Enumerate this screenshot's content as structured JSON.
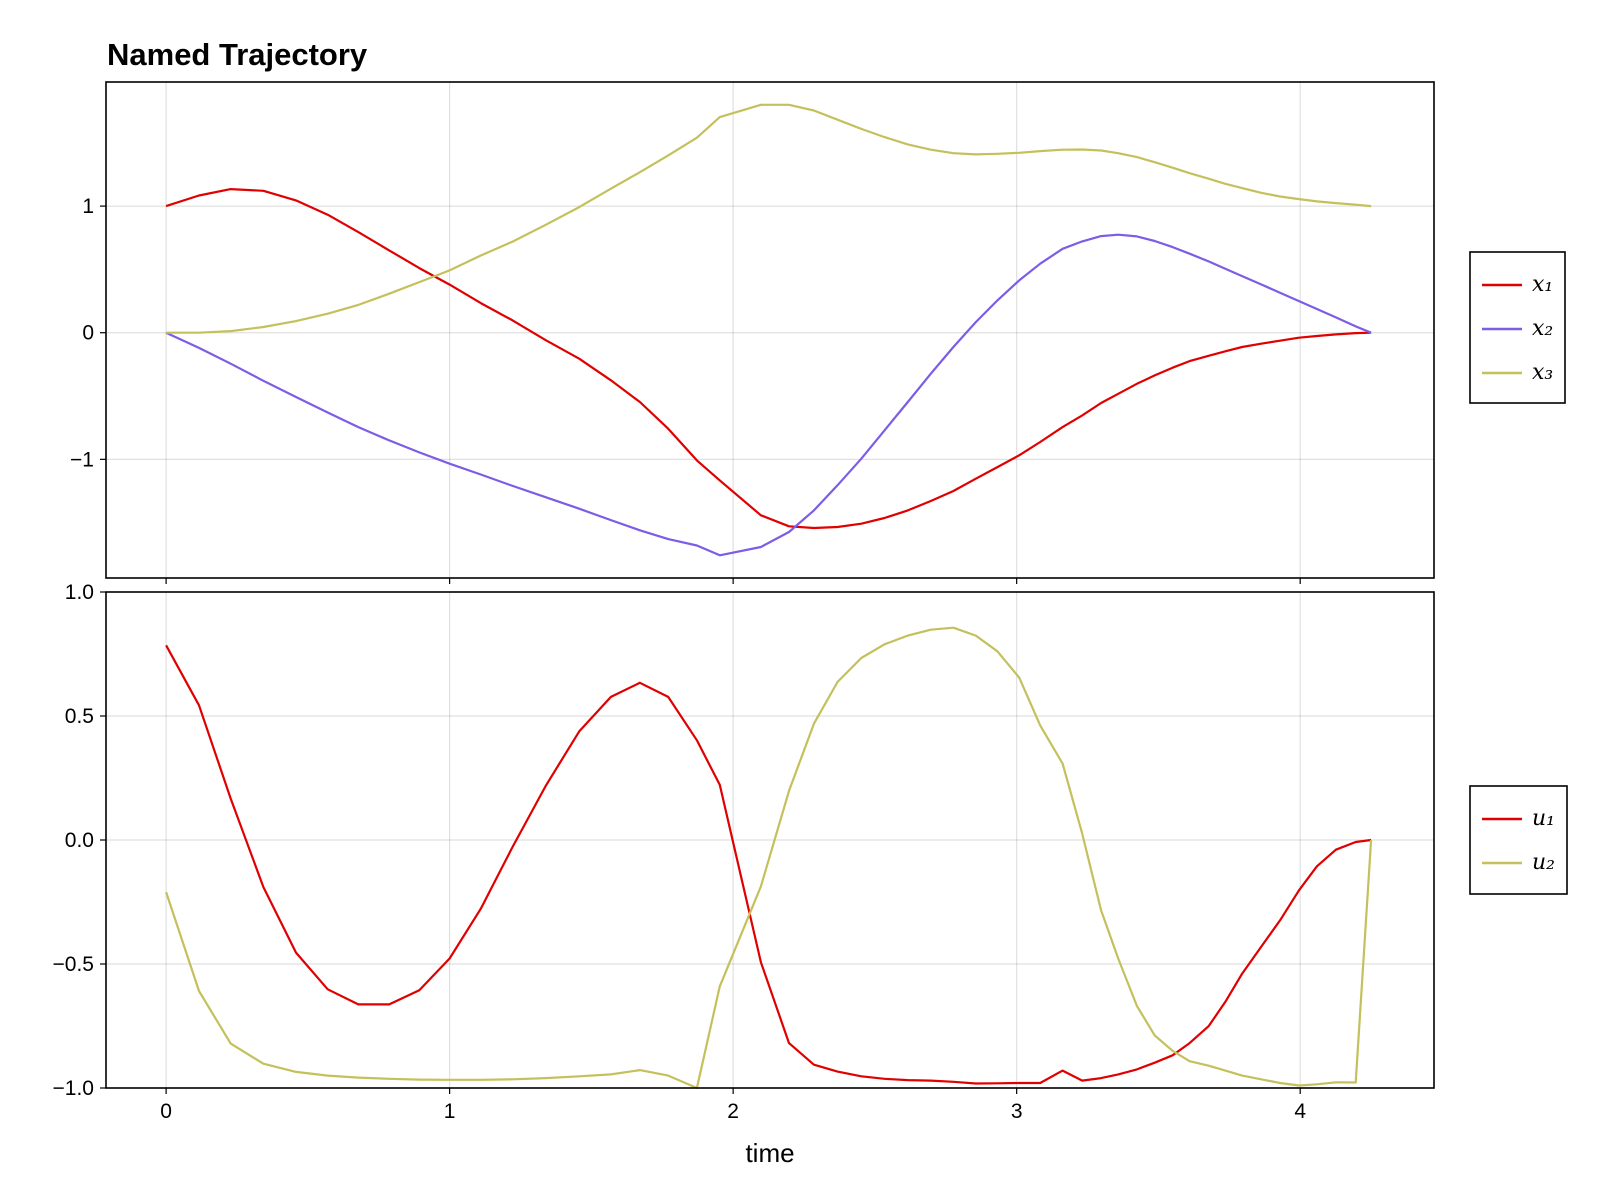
{
  "chart_data": [
    {
      "type": "line",
      "title": "Named Trajectory",
      "xlabel": "",
      "ylabel": "",
      "xlim": [
        -0.212,
        4.472
      ],
      "ylim": [
        -1.937,
        1.98
      ],
      "grid": true,
      "legend_position": "right",
      "xticks": [
        "0",
        "1",
        "2",
        "3",
        "4"
      ],
      "xticks_visible": false,
      "yticks": [
        {
          "value": 1,
          "label": "1"
        },
        {
          "value": 0,
          "label": "0"
        },
        {
          "value": -1,
          "label": "−1"
        }
      ],
      "x": [
        0,
        0.116,
        0.228,
        0.343,
        0.458,
        0.57,
        0.678,
        0.787,
        0.893,
        1.0,
        1.11,
        1.222,
        1.34,
        1.457,
        1.569,
        1.671,
        1.771,
        1.872,
        1.953,
        2.098,
        2.197,
        2.285,
        2.368,
        2.452,
        2.534,
        2.616,
        2.697,
        2.777,
        2.856,
        2.932,
        3.009,
        3.083,
        3.162,
        3.231,
        3.298,
        3.358,
        3.424,
        3.487,
        3.55,
        3.61,
        3.677,
        3.736,
        3.795,
        3.862,
        3.929,
        3.996,
        4.059,
        4.126,
        4.196,
        4.25
      ],
      "series": [
        {
          "name": "x₁",
          "color": "#e00000",
          "values": [
            1.0,
            1.084,
            1.134,
            1.121,
            1.045,
            0.932,
            0.795,
            0.65,
            0.51,
            0.38,
            0.234,
            0.097,
            -0.06,
            -0.205,
            -0.376,
            -0.547,
            -0.758,
            -1.008,
            -1.166,
            -1.442,
            -1.529,
            -1.542,
            -1.534,
            -1.508,
            -1.463,
            -1.403,
            -1.329,
            -1.25,
            -1.153,
            -1.061,
            -0.968,
            -0.863,
            -0.745,
            -0.653,
            -0.555,
            -0.482,
            -0.403,
            -0.337,
            -0.276,
            -0.224,
            -0.182,
            -0.147,
            -0.113,
            -0.087,
            -0.063,
            -0.039,
            -0.026,
            -0.013,
            -0.003,
            0.0
          ]
        },
        {
          "name": "x₂",
          "color": "#7d5ce6",
          "values": [
            0.0,
            -0.12,
            -0.245,
            -0.38,
            -0.508,
            -0.63,
            -0.745,
            -0.85,
            -0.945,
            -1.034,
            -1.12,
            -1.21,
            -1.3,
            -1.39,
            -1.48,
            -1.56,
            -1.63,
            -1.68,
            -1.758,
            -1.692,
            -1.574,
            -1.403,
            -1.205,
            -0.995,
            -0.771,
            -0.547,
            -0.324,
            -0.113,
            0.084,
            0.255,
            0.413,
            0.545,
            0.663,
            0.721,
            0.763,
            0.774,
            0.761,
            0.724,
            0.676,
            0.624,
            0.563,
            0.505,
            0.447,
            0.382,
            0.316,
            0.25,
            0.187,
            0.121,
            0.05,
            0.0
          ]
        },
        {
          "name": "x₃",
          "color": "#c4c05c",
          "values": [
            0.0,
            0.0,
            0.013,
            0.045,
            0.092,
            0.15,
            0.22,
            0.308,
            0.4,
            0.492,
            0.61,
            0.72,
            0.853,
            0.992,
            1.137,
            1.268,
            1.4,
            1.54,
            1.703,
            1.8,
            1.8,
            1.755,
            1.682,
            1.61,
            1.545,
            1.487,
            1.445,
            1.418,
            1.408,
            1.413,
            1.421,
            1.434,
            1.445,
            1.447,
            1.439,
            1.418,
            1.387,
            1.347,
            1.303,
            1.26,
            1.216,
            1.176,
            1.142,
            1.105,
            1.076,
            1.055,
            1.037,
            1.024,
            1.011,
            1.0
          ]
        }
      ]
    },
    {
      "type": "line",
      "title": "",
      "xlabel": "time",
      "ylabel": "",
      "xlim": [
        -0.212,
        4.472
      ],
      "ylim": [
        -1.0,
        1.0
      ],
      "grid": true,
      "legend_position": "right",
      "xticks": [
        "0",
        "1",
        "2",
        "3",
        "4"
      ],
      "xticks_visible": true,
      "yticks": [
        {
          "value": 1.0,
          "label": "1.0"
        },
        {
          "value": 0.5,
          "label": "0.5"
        },
        {
          "value": 0.0,
          "label": "0.0"
        },
        {
          "value": -0.5,
          "label": "−0.5"
        },
        {
          "value": -1.0,
          "label": "−1.0"
        }
      ],
      "x": [
        0,
        0.116,
        0.228,
        0.343,
        0.458,
        0.57,
        0.678,
        0.787,
        0.893,
        1.0,
        1.11,
        1.222,
        1.34,
        1.457,
        1.569,
        1.671,
        1.771,
        1.872,
        1.953,
        2.098,
        2.197,
        2.285,
        2.368,
        2.452,
        2.534,
        2.616,
        2.697,
        2.777,
        2.856,
        2.932,
        3.009,
        3.083,
        3.162,
        3.231,
        3.298,
        3.358,
        3.424,
        3.487,
        3.55,
        3.61,
        3.677,
        3.736,
        3.795,
        3.862,
        3.929,
        3.996,
        4.059,
        4.126,
        4.196,
        4.25
      ],
      "series": [
        {
          "name": "u₁",
          "color": "#e00000",
          "values": [
            0.785,
            0.543,
            0.167,
            -0.19,
            -0.454,
            -0.602,
            -0.663,
            -0.663,
            -0.606,
            -0.478,
            -0.277,
            -0.028,
            0.22,
            0.438,
            0.577,
            0.634,
            0.577,
            0.402,
            0.222,
            -0.493,
            -0.819,
            -0.906,
            -0.934,
            -0.953,
            -0.963,
            -0.968,
            -0.97,
            -0.975,
            -0.982,
            -0.981,
            -0.98,
            -0.98,
            -0.93,
            -0.97,
            -0.96,
            -0.945,
            -0.925,
            -0.898,
            -0.868,
            -0.819,
            -0.751,
            -0.653,
            -0.539,
            -0.431,
            -0.324,
            -0.203,
            -0.106,
            -0.039,
            -0.008,
            0.0
          ]
        },
        {
          "name": "u₂",
          "color": "#c4c05c",
          "values": [
            -0.21,
            -0.609,
            -0.821,
            -0.902,
            -0.935,
            -0.95,
            -0.958,
            -0.963,
            -0.966,
            -0.967,
            -0.967,
            -0.965,
            -0.96,
            -0.953,
            -0.945,
            -0.928,
            -0.95,
            -1.0,
            -0.59,
            -0.187,
            0.198,
            0.469,
            0.637,
            0.734,
            0.789,
            0.824,
            0.848,
            0.856,
            0.824,
            0.761,
            0.655,
            0.462,
            0.308,
            0.026,
            -0.284,
            -0.478,
            -0.669,
            -0.788,
            -0.85,
            -0.892,
            -0.91,
            -0.93,
            -0.95,
            -0.965,
            -0.98,
            -0.99,
            -0.985,
            -0.977,
            -0.978,
            0.0
          ]
        }
      ]
    }
  ]
}
